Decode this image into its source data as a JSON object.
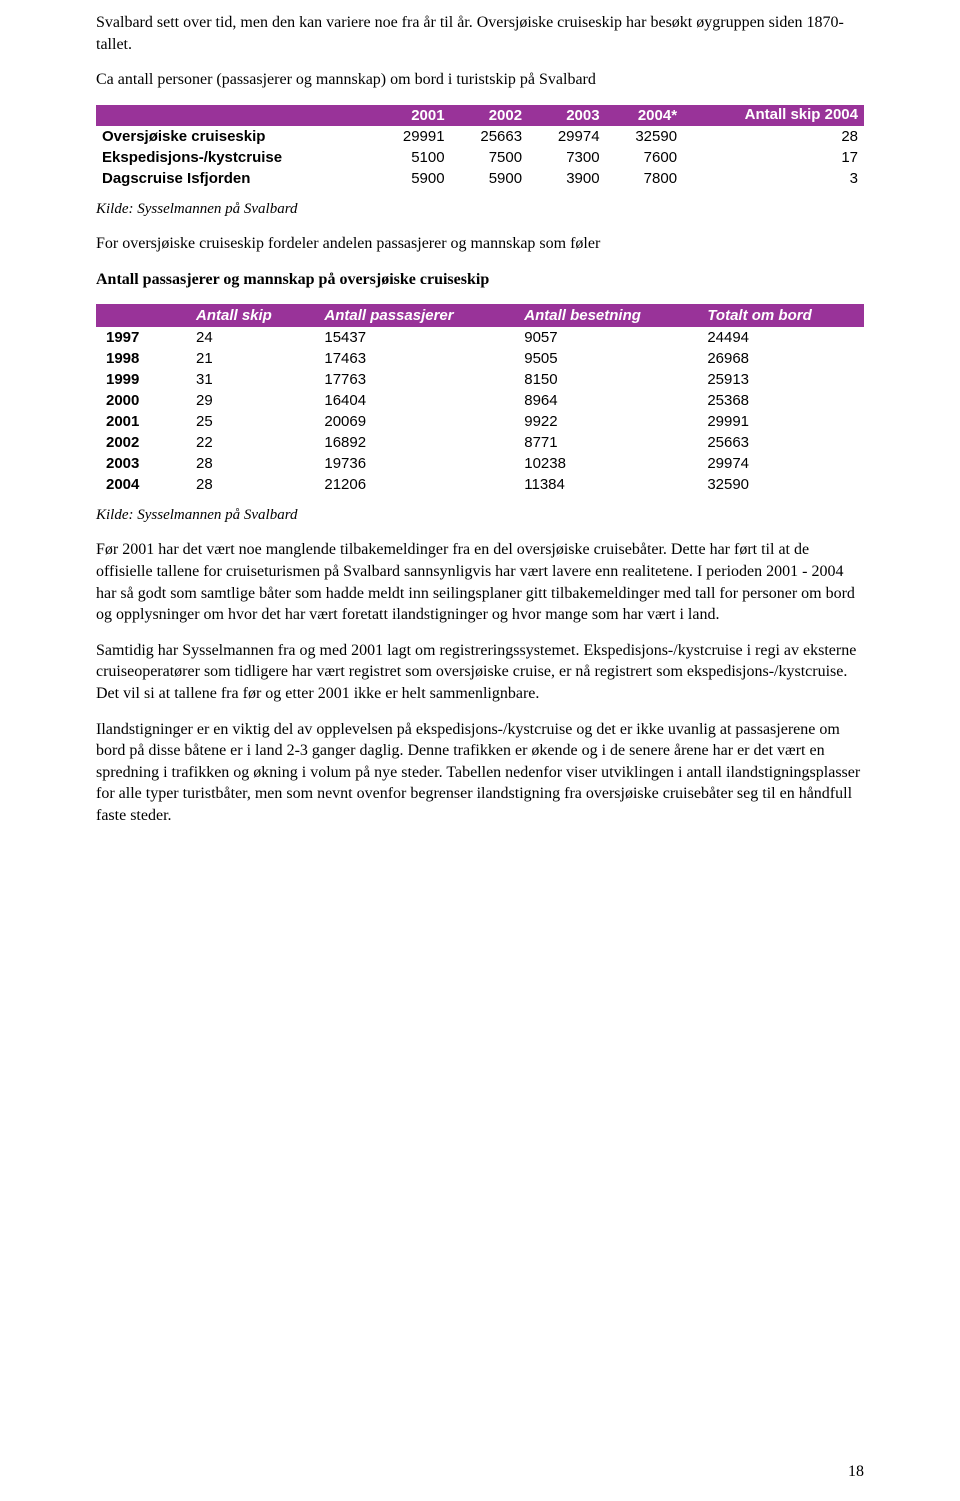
{
  "paragraphs": {
    "p1": "Svalbard sett over tid, men den kan variere noe fra år til år. Oversjøiske cruiseskip har besøkt øygruppen siden 1870-tallet.",
    "p2": "Ca antall personer (passasjerer og mannskap) om bord i turistskip på Svalbard",
    "p3": "For oversjøiske cruiseskip fordeler andelen passasjerer og mannskap som føler",
    "p4": "Antall passasjerer og mannskap på oversjøiske cruiseskip",
    "p5": "Før 2001 har det vært noe manglende tilbakemeldinger fra en del oversjøiske cruisebåter. Dette har ført til at de offisielle tallene for cruiseturismen på Svalbard sannsynligvis har vært lavere enn realitetene. I perioden 2001 - 2004 har så godt som samtlige båter som hadde meldt inn seilingsplaner gitt tilbakemeldinger med tall for personer om bord og opplysninger om hvor det har vært foretatt ilandstigninger og hvor mange som har vært i land.",
    "p6": "Samtidig har Sysselmannen fra og med 2001 lagt om registreringssystemet. Ekspedisjons-/kystcruise i regi av eksterne cruiseoperatører som tidligere har vært registret som oversjøiske cruise, er nå registrert som ekspedisjons-/kystcruise. Det vil si at tallene fra før og etter 2001 ikke er helt sammenlignbare.",
    "p7": "Ilandstigninger er en viktig del av opplevelsen på ekspedisjons-/kystcruise og det er ikke uvanlig at passasjerene om bord på disse båtene er i land 2-3 ganger daglig. Denne trafikken er økende og i de senere årene har er det vært en spredning i trafikken og økning i volum på nye steder. Tabellen nedenfor viser utviklingen i antall ilandstigningsplasser for alle typer turistbåter, men som nevnt ovenfor begrenser ilandstigning fra oversjøiske cruisebåter seg til en håndfull faste steder."
  },
  "source": "Kilde: Sysselmannen på Svalbard",
  "table1": {
    "colors": {
      "header_bg": "#993399",
      "header_fg": "#ffffff"
    },
    "columns": [
      "2001",
      "2002",
      "2003",
      "2004*",
      "Antall skip 2004"
    ],
    "rows": [
      {
        "label": "Oversjøiske cruiseskip",
        "v": [
          "29991",
          "25663",
          "29974",
          "32590",
          "28"
        ]
      },
      {
        "label": "Ekspedisjons-/kystcruise",
        "v": [
          "5100",
          "7500",
          "7300",
          "7600",
          "17"
        ]
      },
      {
        "label": "Dagscruise Isfjorden",
        "v": [
          "5900",
          "5900",
          "3900",
          "7800",
          "3"
        ]
      }
    ]
  },
  "table2": {
    "colors": {
      "header_bg": "#993399",
      "header_fg": "#ffffff"
    },
    "columns": [
      "Antall skip",
      "Antall passasjerer",
      "Antall besetning",
      "Totalt om bord"
    ],
    "rows": [
      {
        "year": "1997",
        "v": [
          "24",
          "15437",
          "9057",
          "24494"
        ]
      },
      {
        "year": "1998",
        "v": [
          "21",
          "17463",
          "9505",
          "26968"
        ]
      },
      {
        "year": "1999",
        "v": [
          "31",
          "17763",
          "8150",
          "25913"
        ]
      },
      {
        "year": "2000",
        "v": [
          "29",
          "16404",
          "8964",
          "25368"
        ]
      },
      {
        "year": "2001",
        "v": [
          "25",
          "20069",
          "9922",
          "29991"
        ]
      },
      {
        "year": "2002",
        "v": [
          "22",
          "16892",
          "8771",
          "25663"
        ]
      },
      {
        "year": "2003",
        "v": [
          "28",
          "19736",
          "10238",
          "29974"
        ]
      },
      {
        "year": "2004",
        "v": [
          "28",
          "21206",
          "11384",
          "32590"
        ]
      }
    ]
  },
  "page_number": "18"
}
